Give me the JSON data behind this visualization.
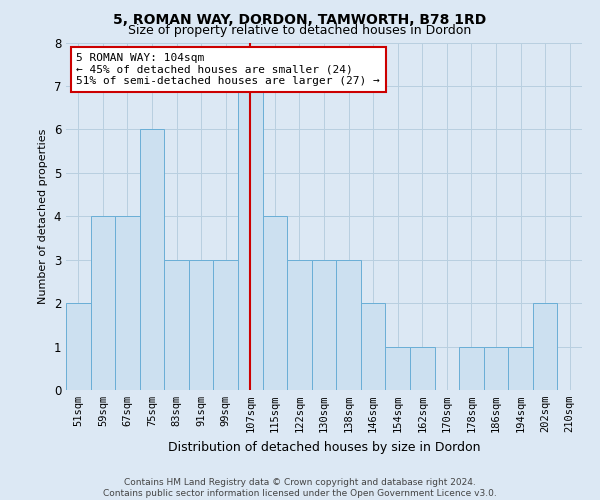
{
  "title_line1": "5, ROMAN WAY, DORDON, TAMWORTH, B78 1RD",
  "title_line2": "Size of property relative to detached houses in Dordon",
  "xlabel": "Distribution of detached houses by size in Dordon",
  "ylabel": "Number of detached properties",
  "categories": [
    "51sqm",
    "59sqm",
    "67sqm",
    "75sqm",
    "83sqm",
    "91sqm",
    "99sqm",
    "107sqm",
    "115sqm",
    "122sqm",
    "130sqm",
    "138sqm",
    "146sqm",
    "154sqm",
    "162sqm",
    "170sqm",
    "178sqm",
    "186sqm",
    "194sqm",
    "202sqm",
    "210sqm"
  ],
  "values": [
    2,
    4,
    4,
    6,
    3,
    3,
    3,
    7,
    4,
    3,
    3,
    3,
    2,
    1,
    1,
    0,
    1,
    1,
    1,
    2,
    0
  ],
  "bar_color": "#cce0f0",
  "bar_edge_color": "#6aaed6",
  "reference_line_x": 7,
  "reference_line_color": "#cc0000",
  "annotation_text": "5 ROMAN WAY: 104sqm\n← 45% of detached houses are smaller (24)\n51% of semi-detached houses are larger (27) →",
  "annotation_box_color": "#ffffff",
  "annotation_box_edge": "#cc0000",
  "ylim": [
    0,
    8
  ],
  "yticks": [
    0,
    1,
    2,
    3,
    4,
    5,
    6,
    7,
    8
  ],
  "grid_color": "#b8cfe0",
  "background_color": "#dce8f4",
  "fig_background_color": "#dce8f4",
  "footer": "Contains HM Land Registry data © Crown copyright and database right 2024.\nContains public sector information licensed under the Open Government Licence v3.0.",
  "title_fontsize": 10,
  "subtitle_fontsize": 9,
  "tick_fontsize": 7.5,
  "ylabel_fontsize": 8,
  "xlabel_fontsize": 9,
  "footer_fontsize": 6.5,
  "annotation_fontsize": 8
}
